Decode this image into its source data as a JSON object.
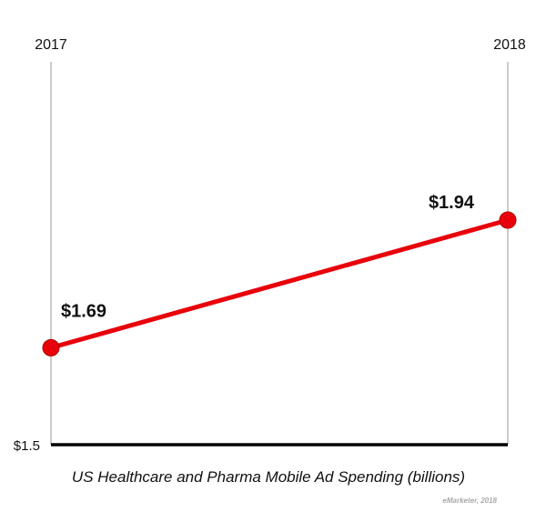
{
  "chart_data": {
    "type": "line",
    "title": "US Healthcare and Pharma Mobile Ad Spending (billions)",
    "source": "eMarketer, 2018",
    "categories": [
      "2017",
      "2018"
    ],
    "values": [
      1.69,
      1.94
    ],
    "data_labels": [
      "$1.69",
      "$1.94"
    ],
    "ytick_label": "$1.5",
    "ylim": [
      1.5,
      2.25
    ],
    "line_color": "#e8000b",
    "grid": false
  }
}
